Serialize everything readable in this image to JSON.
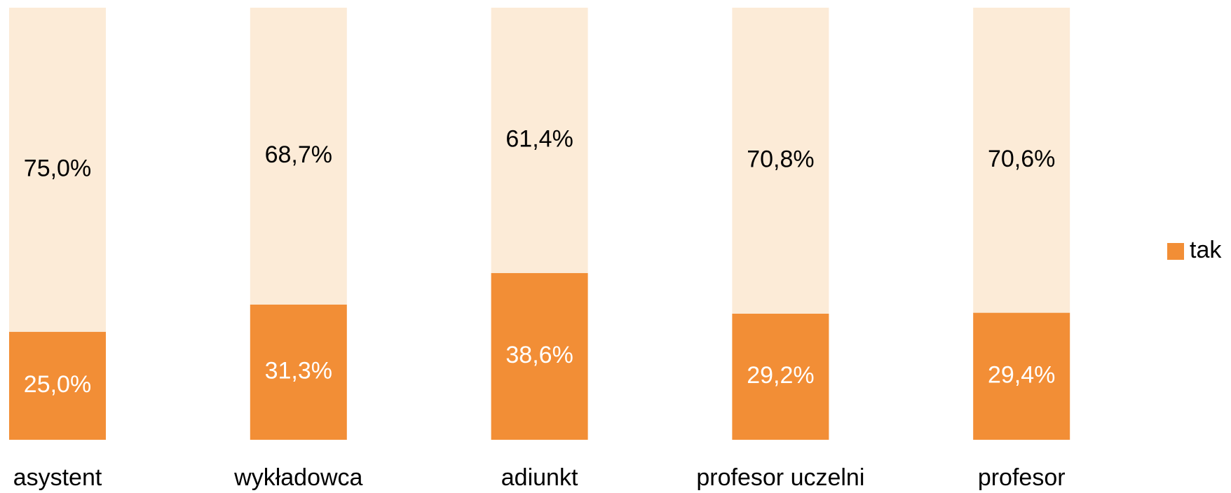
{
  "chart_data": {
    "type": "stacked_bar",
    "categories": [
      "asystent",
      "wykładowca",
      "adiunkt",
      "profesor uczelni",
      "profesor"
    ],
    "series": [
      {
        "name": "tak",
        "color": "#f28e36",
        "label_color": "#ffffff",
        "values": [
          25.0,
          31.3,
          38.6,
          29.2,
          29.4
        ],
        "value_labels": [
          "25,0%",
          "31,3%",
          "38,6%",
          "29,2%",
          "29,4%"
        ]
      },
      {
        "color": "#fcebd7",
        "label_color": "#000000",
        "values": [
          75.0,
          68.7,
          61.4,
          70.8,
          70.6
        ],
        "value_labels": [
          "75,0%",
          "68,7%",
          "61,4%",
          "70,8%",
          "70,6%"
        ]
      }
    ],
    "ylim": [
      0,
      100
    ]
  }
}
